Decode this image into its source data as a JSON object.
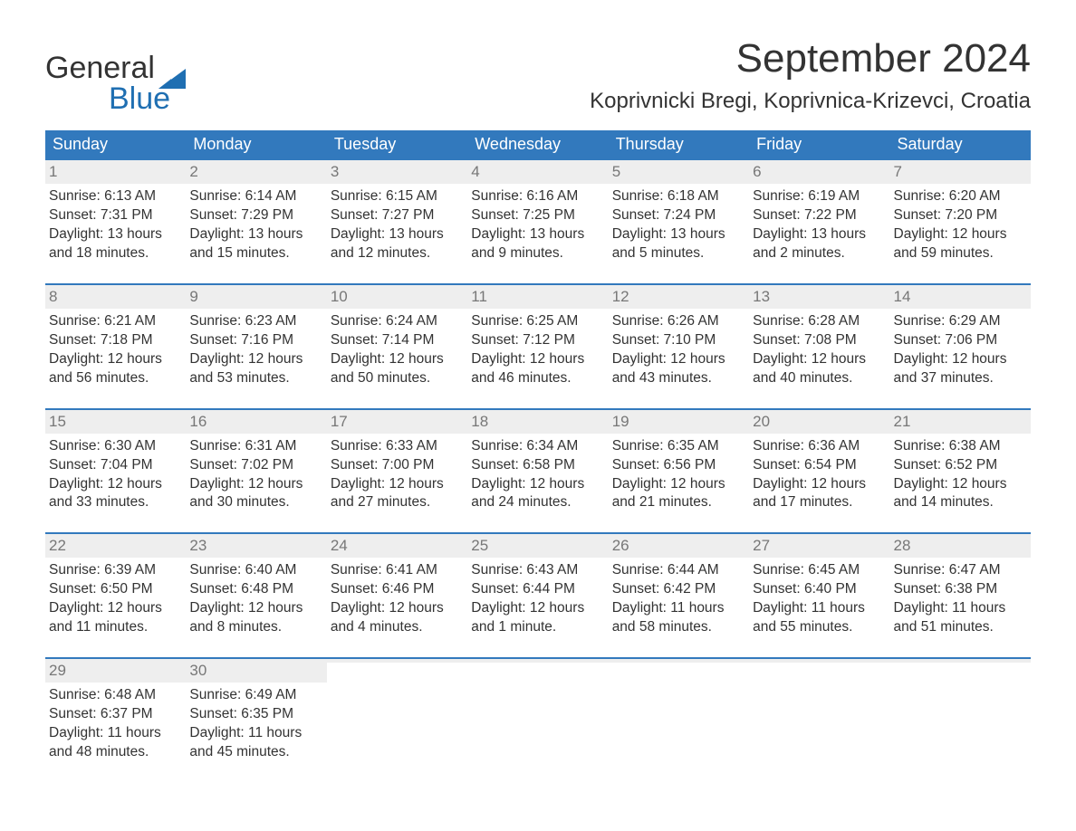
{
  "logo": {
    "text1": "General",
    "text2": "Blue",
    "flag_color": "#1f6fb2"
  },
  "header": {
    "month_title": "September 2024",
    "location": "Koprivnicki Bregi, Koprivnica-Krizevci, Croatia"
  },
  "colors": {
    "header_bg": "#3279bd",
    "header_text": "#ffffff",
    "week_border": "#3279bd",
    "daynum_bg": "#eeeeee",
    "daynum_text": "#777777",
    "body_text": "#333333",
    "logo_blue": "#1f6fb2",
    "page_bg": "#ffffff"
  },
  "fonts": {
    "month_title_size": 44,
    "location_size": 24,
    "dow_size": 18,
    "daynum_size": 17,
    "body_size": 15.5,
    "logo_size": 34
  },
  "days_of_week": [
    "Sunday",
    "Monday",
    "Tuesday",
    "Wednesday",
    "Thursday",
    "Friday",
    "Saturday"
  ],
  "weeks": [
    [
      {
        "n": "1",
        "sunrise": "Sunrise: 6:13 AM",
        "sunset": "Sunset: 7:31 PM",
        "dl1": "Daylight: 13 hours",
        "dl2": "and 18 minutes."
      },
      {
        "n": "2",
        "sunrise": "Sunrise: 6:14 AM",
        "sunset": "Sunset: 7:29 PM",
        "dl1": "Daylight: 13 hours",
        "dl2": "and 15 minutes."
      },
      {
        "n": "3",
        "sunrise": "Sunrise: 6:15 AM",
        "sunset": "Sunset: 7:27 PM",
        "dl1": "Daylight: 13 hours",
        "dl2": "and 12 minutes."
      },
      {
        "n": "4",
        "sunrise": "Sunrise: 6:16 AM",
        "sunset": "Sunset: 7:25 PM",
        "dl1": "Daylight: 13 hours",
        "dl2": "and 9 minutes."
      },
      {
        "n": "5",
        "sunrise": "Sunrise: 6:18 AM",
        "sunset": "Sunset: 7:24 PM",
        "dl1": "Daylight: 13 hours",
        "dl2": "and 5 minutes."
      },
      {
        "n": "6",
        "sunrise": "Sunrise: 6:19 AM",
        "sunset": "Sunset: 7:22 PM",
        "dl1": "Daylight: 13 hours",
        "dl2": "and 2 minutes."
      },
      {
        "n": "7",
        "sunrise": "Sunrise: 6:20 AM",
        "sunset": "Sunset: 7:20 PM",
        "dl1": "Daylight: 12 hours",
        "dl2": "and 59 minutes."
      }
    ],
    [
      {
        "n": "8",
        "sunrise": "Sunrise: 6:21 AM",
        "sunset": "Sunset: 7:18 PM",
        "dl1": "Daylight: 12 hours",
        "dl2": "and 56 minutes."
      },
      {
        "n": "9",
        "sunrise": "Sunrise: 6:23 AM",
        "sunset": "Sunset: 7:16 PM",
        "dl1": "Daylight: 12 hours",
        "dl2": "and 53 minutes."
      },
      {
        "n": "10",
        "sunrise": "Sunrise: 6:24 AM",
        "sunset": "Sunset: 7:14 PM",
        "dl1": "Daylight: 12 hours",
        "dl2": "and 50 minutes."
      },
      {
        "n": "11",
        "sunrise": "Sunrise: 6:25 AM",
        "sunset": "Sunset: 7:12 PM",
        "dl1": "Daylight: 12 hours",
        "dl2": "and 46 minutes."
      },
      {
        "n": "12",
        "sunrise": "Sunrise: 6:26 AM",
        "sunset": "Sunset: 7:10 PM",
        "dl1": "Daylight: 12 hours",
        "dl2": "and 43 minutes."
      },
      {
        "n": "13",
        "sunrise": "Sunrise: 6:28 AM",
        "sunset": "Sunset: 7:08 PM",
        "dl1": "Daylight: 12 hours",
        "dl2": "and 40 minutes."
      },
      {
        "n": "14",
        "sunrise": "Sunrise: 6:29 AM",
        "sunset": "Sunset: 7:06 PM",
        "dl1": "Daylight: 12 hours",
        "dl2": "and 37 minutes."
      }
    ],
    [
      {
        "n": "15",
        "sunrise": "Sunrise: 6:30 AM",
        "sunset": "Sunset: 7:04 PM",
        "dl1": "Daylight: 12 hours",
        "dl2": "and 33 minutes."
      },
      {
        "n": "16",
        "sunrise": "Sunrise: 6:31 AM",
        "sunset": "Sunset: 7:02 PM",
        "dl1": "Daylight: 12 hours",
        "dl2": "and 30 minutes."
      },
      {
        "n": "17",
        "sunrise": "Sunrise: 6:33 AM",
        "sunset": "Sunset: 7:00 PM",
        "dl1": "Daylight: 12 hours",
        "dl2": "and 27 minutes."
      },
      {
        "n": "18",
        "sunrise": "Sunrise: 6:34 AM",
        "sunset": "Sunset: 6:58 PM",
        "dl1": "Daylight: 12 hours",
        "dl2": "and 24 minutes."
      },
      {
        "n": "19",
        "sunrise": "Sunrise: 6:35 AM",
        "sunset": "Sunset: 6:56 PM",
        "dl1": "Daylight: 12 hours",
        "dl2": "and 21 minutes."
      },
      {
        "n": "20",
        "sunrise": "Sunrise: 6:36 AM",
        "sunset": "Sunset: 6:54 PM",
        "dl1": "Daylight: 12 hours",
        "dl2": "and 17 minutes."
      },
      {
        "n": "21",
        "sunrise": "Sunrise: 6:38 AM",
        "sunset": "Sunset: 6:52 PM",
        "dl1": "Daylight: 12 hours",
        "dl2": "and 14 minutes."
      }
    ],
    [
      {
        "n": "22",
        "sunrise": "Sunrise: 6:39 AM",
        "sunset": "Sunset: 6:50 PM",
        "dl1": "Daylight: 12 hours",
        "dl2": "and 11 minutes."
      },
      {
        "n": "23",
        "sunrise": "Sunrise: 6:40 AM",
        "sunset": "Sunset: 6:48 PM",
        "dl1": "Daylight: 12 hours",
        "dl2": "and 8 minutes."
      },
      {
        "n": "24",
        "sunrise": "Sunrise: 6:41 AM",
        "sunset": "Sunset: 6:46 PM",
        "dl1": "Daylight: 12 hours",
        "dl2": "and 4 minutes."
      },
      {
        "n": "25",
        "sunrise": "Sunrise: 6:43 AM",
        "sunset": "Sunset: 6:44 PM",
        "dl1": "Daylight: 12 hours",
        "dl2": "and 1 minute."
      },
      {
        "n": "26",
        "sunrise": "Sunrise: 6:44 AM",
        "sunset": "Sunset: 6:42 PM",
        "dl1": "Daylight: 11 hours",
        "dl2": "and 58 minutes."
      },
      {
        "n": "27",
        "sunrise": "Sunrise: 6:45 AM",
        "sunset": "Sunset: 6:40 PM",
        "dl1": "Daylight: 11 hours",
        "dl2": "and 55 minutes."
      },
      {
        "n": "28",
        "sunrise": "Sunrise: 6:47 AM",
        "sunset": "Sunset: 6:38 PM",
        "dl1": "Daylight: 11 hours",
        "dl2": "and 51 minutes."
      }
    ],
    [
      {
        "n": "29",
        "sunrise": "Sunrise: 6:48 AM",
        "sunset": "Sunset: 6:37 PM",
        "dl1": "Daylight: 11 hours",
        "dl2": "and 48 minutes."
      },
      {
        "n": "30",
        "sunrise": "Sunrise: 6:49 AM",
        "sunset": "Sunset: 6:35 PM",
        "dl1": "Daylight: 11 hours",
        "dl2": "and 45 minutes."
      },
      {
        "n": "",
        "sunrise": "",
        "sunset": "",
        "dl1": "",
        "dl2": ""
      },
      {
        "n": "",
        "sunrise": "",
        "sunset": "",
        "dl1": "",
        "dl2": ""
      },
      {
        "n": "",
        "sunrise": "",
        "sunset": "",
        "dl1": "",
        "dl2": ""
      },
      {
        "n": "",
        "sunrise": "",
        "sunset": "",
        "dl1": "",
        "dl2": ""
      },
      {
        "n": "",
        "sunrise": "",
        "sunset": "",
        "dl1": "",
        "dl2": ""
      }
    ]
  ]
}
